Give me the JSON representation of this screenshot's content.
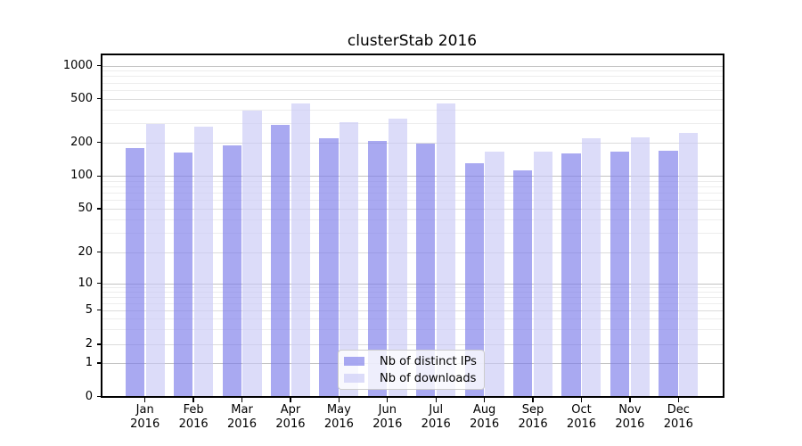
{
  "title": "clusterStab 2016",
  "legend": {
    "items": [
      {
        "label": "Nb of distinct IPs",
        "color": "#7b7bea"
      },
      {
        "label": "Nb of downloads",
        "color": "#cacaf6"
      }
    ]
  },
  "colors": {
    "ips_bar": "#7b7bea",
    "downloads_bar": "#cacaf6",
    "bar_opacity": 0.65,
    "grid_major": "#c3c3c3",
    "grid_mid": "#dcdcdc",
    "grid_minor": "#ededed",
    "spine": "#000000",
    "background": "#ffffff"
  },
  "y_axis": {
    "tick_values": [
      1000,
      500,
      200,
      100,
      50,
      20,
      10,
      5,
      2,
      1,
      0
    ]
  },
  "chart_data": {
    "type": "bar",
    "title": "clusterStab 2016",
    "categories": [
      "Jan 2016",
      "Feb 2016",
      "Mar 2016",
      "Apr 2016",
      "May 2016",
      "Jun 2016",
      "Jul 2016",
      "Aug 2016",
      "Sep 2016",
      "Oct 2016",
      "Nov 2016",
      "Dec 2016"
    ],
    "series": [
      {
        "name": "Nb of distinct IPs",
        "values": [
          179,
          161,
          187,
          290,
          218,
          207,
          196,
          131,
          112,
          160,
          165,
          168
        ]
      },
      {
        "name": "Nb of downloads",
        "values": [
          294,
          278,
          392,
          455,
          304,
          328,
          450,
          166,
          164,
          218,
          221,
          244
        ]
      }
    ],
    "yscale": "symlog",
    "yticks": [
      0,
      1,
      2,
      5,
      10,
      20,
      50,
      100,
      200,
      500,
      1000
    ],
    "ylim": [
      0,
      1290
    ],
    "grid": true,
    "legend_position": "lower center",
    "xlabel": "",
    "ylabel": ""
  }
}
